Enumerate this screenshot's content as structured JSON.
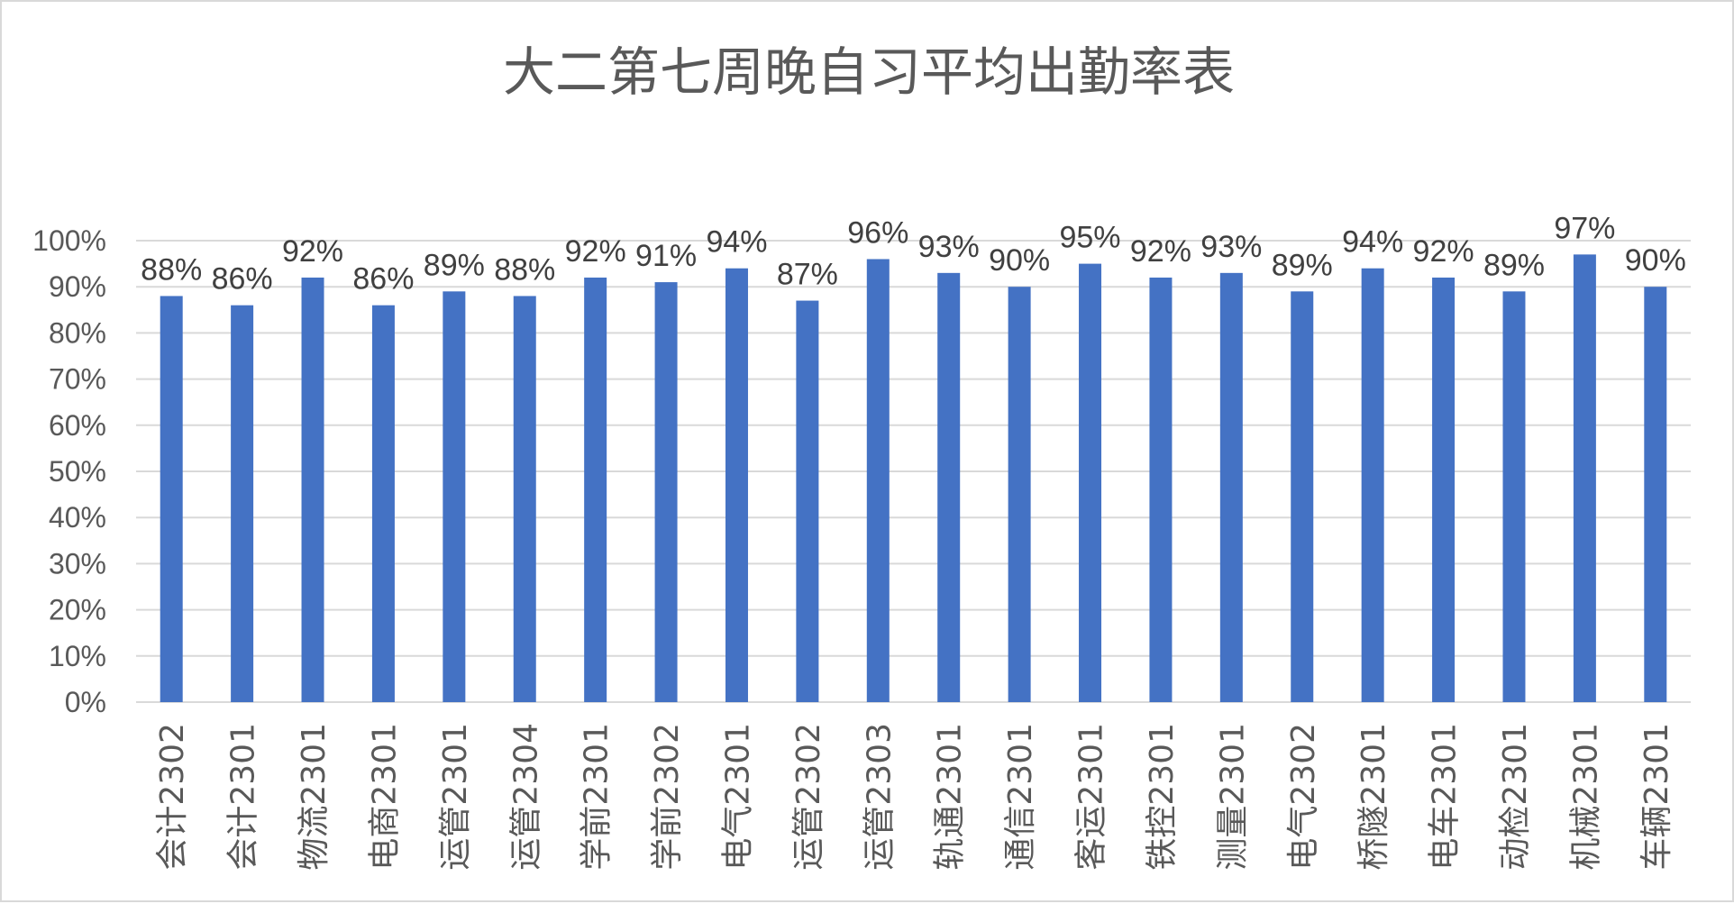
{
  "chart_data": {
    "type": "bar",
    "title": "大二第七周晚自习平均出勤率表",
    "xlabel": "",
    "ylabel": "",
    "ylim": [
      0,
      100
    ],
    "ytick_step": 10,
    "ytick_suffix": "%",
    "grid": true,
    "legend": "none",
    "bar_color": "#4472c4",
    "categories": [
      "会计2302",
      "会计2301",
      "物流2301",
      "电商2301",
      "运管2301",
      "运管2304",
      "学前2301",
      "学前2302",
      "电气2301",
      "运管2302",
      "运管2303",
      "轨通2301",
      "通信2301",
      "客运2301",
      "铁控2301",
      "测量2301",
      "电气2302",
      "桥隧2301",
      "电车2301",
      "动检2301",
      "机械2301",
      "车辆2301"
    ],
    "values": [
      88,
      86,
      92,
      86,
      89,
      88,
      92,
      91,
      94,
      87,
      96,
      93,
      90,
      95,
      92,
      93,
      89,
      94,
      92,
      89,
      97,
      90
    ],
    "data_labels": [
      "88%",
      "86%",
      "92%",
      "86%",
      "89%",
      "88%",
      "92%",
      "91%",
      "94%",
      "87%",
      "96%",
      "93%",
      "90%",
      "95%",
      "92%",
      "93%",
      "89%",
      "94%",
      "92%",
      "89%",
      "97%",
      "90%"
    ]
  }
}
